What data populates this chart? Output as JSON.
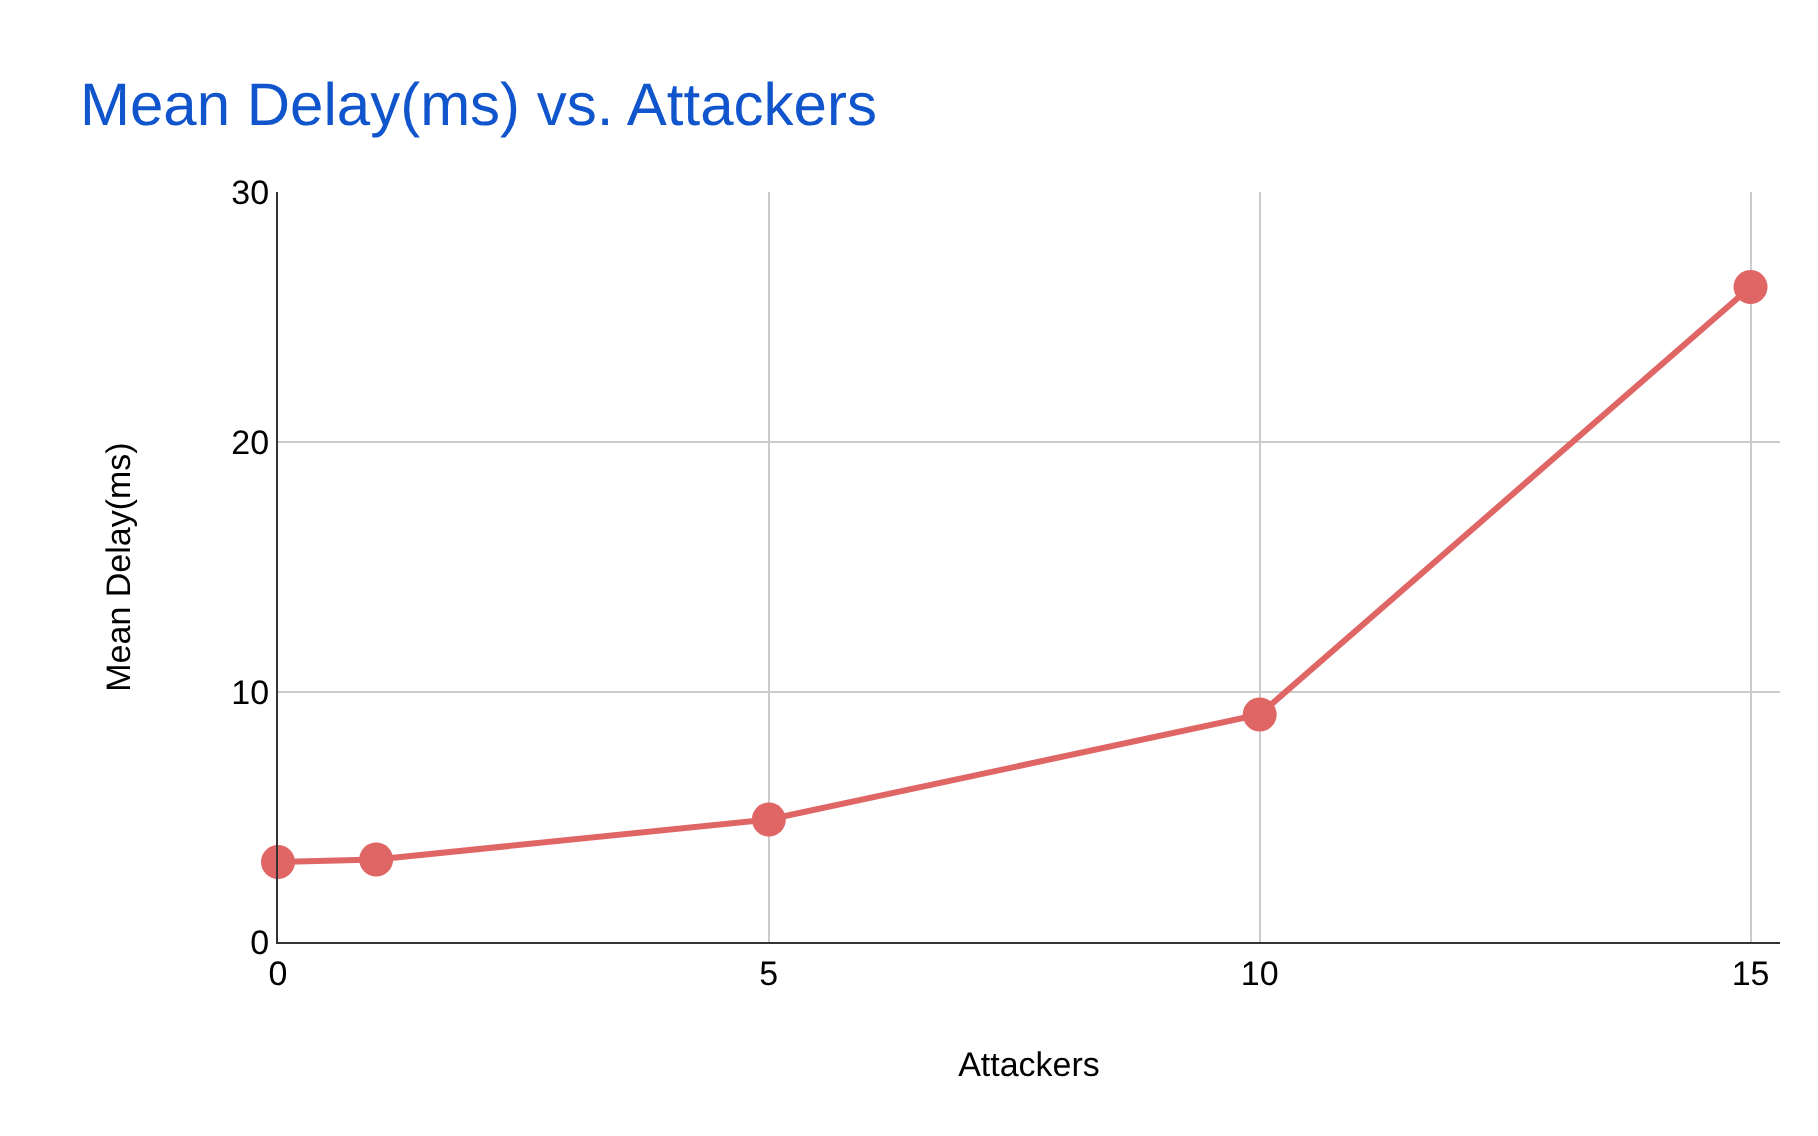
{
  "chart_data": {
    "type": "line",
    "title": "Mean Delay(ms) vs. Attackers",
    "xlabel": "Attackers",
    "ylabel": "Mean Delay(ms)",
    "x": [
      0,
      1,
      5,
      10,
      15
    ],
    "series": [
      {
        "color": "#e06666",
        "values": [
          3.2,
          3.3,
          4.9,
          9.1,
          26.2
        ]
      }
    ],
    "xlim": [
      0,
      15.3
    ],
    "xticks": [
      0,
      5,
      10,
      15
    ],
    "ylim": [
      0,
      30
    ],
    "yticks": [
      0,
      10,
      20,
      30
    ],
    "grid": true,
    "marker": "circle",
    "line_style": "solid"
  }
}
